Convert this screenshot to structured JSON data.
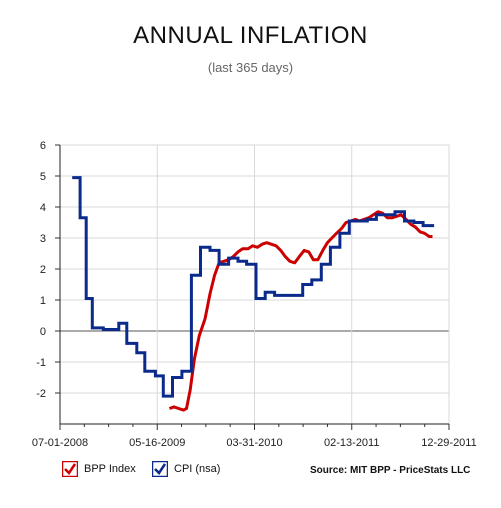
{
  "chart_data": {
    "type": "line",
    "title": "ANNUAL INFLATION",
    "subtitle": "(last 365 days)",
    "xlabel": "",
    "ylabel": "",
    "ylim": [
      -3,
      6
    ],
    "xlim": [
      "2008-07-01",
      "2011-12-29"
    ],
    "yticks": [
      "-2",
      "-1",
      "0",
      "1",
      "2",
      "3",
      "4",
      "5",
      "6"
    ],
    "xticks": [
      "07-01-2008",
      "05-16-2009",
      "03-31-2010",
      "02-13-2011",
      "12-29-2011"
    ],
    "grid": true,
    "legend": "bottom-left",
    "source": "Source: MIT BPP - PriceStats LLC",
    "series": [
      {
        "name": "BPP Index",
        "color": "#cc0000",
        "points": [
          [
            "2009-06-25",
            -2.5
          ],
          [
            "2009-07-10",
            -2.45
          ],
          [
            "2009-07-25",
            -2.5
          ],
          [
            "2009-08-10",
            -2.55
          ],
          [
            "2009-08-20",
            -2.5
          ],
          [
            "2009-09-01",
            -1.9
          ],
          [
            "2009-09-15",
            -0.9
          ],
          [
            "2009-10-01",
            -0.15
          ],
          [
            "2009-10-20",
            0.4
          ],
          [
            "2009-11-05",
            1.2
          ],
          [
            "2009-11-20",
            1.8
          ],
          [
            "2009-12-05",
            2.2
          ],
          [
            "2009-12-20",
            2.25
          ],
          [
            "2010-01-05",
            2.3
          ],
          [
            "2010-01-20",
            2.4
          ],
          [
            "2010-02-05",
            2.55
          ],
          [
            "2010-02-20",
            2.65
          ],
          [
            "2010-03-10",
            2.65
          ],
          [
            "2010-03-25",
            2.75
          ],
          [
            "2010-04-10",
            2.7
          ],
          [
            "2010-04-25",
            2.8
          ],
          [
            "2010-05-10",
            2.85
          ],
          [
            "2010-05-25",
            2.8
          ],
          [
            "2010-06-10",
            2.75
          ],
          [
            "2010-06-25",
            2.6
          ],
          [
            "2010-07-10",
            2.4
          ],
          [
            "2010-07-25",
            2.25
          ],
          [
            "2010-08-10",
            2.2
          ],
          [
            "2010-08-25",
            2.4
          ],
          [
            "2010-09-10",
            2.6
          ],
          [
            "2010-09-25",
            2.55
          ],
          [
            "2010-10-10",
            2.3
          ],
          [
            "2010-10-25",
            2.3
          ],
          [
            "2010-11-10",
            2.6
          ],
          [
            "2010-11-25",
            2.85
          ],
          [
            "2010-12-10",
            3.0
          ],
          [
            "2010-12-25",
            3.15
          ],
          [
            "2011-01-10",
            3.3
          ],
          [
            "2011-01-25",
            3.5
          ],
          [
            "2011-02-10",
            3.55
          ],
          [
            "2011-02-25",
            3.6
          ],
          [
            "2011-03-10",
            3.55
          ],
          [
            "2011-03-25",
            3.6
          ],
          [
            "2011-04-10",
            3.65
          ],
          [
            "2011-04-25",
            3.75
          ],
          [
            "2011-05-10",
            3.85
          ],
          [
            "2011-05-25",
            3.8
          ],
          [
            "2011-06-10",
            3.65
          ],
          [
            "2011-06-25",
            3.65
          ],
          [
            "2011-07-10",
            3.7
          ],
          [
            "2011-07-25",
            3.75
          ],
          [
            "2011-08-10",
            3.6
          ],
          [
            "2011-08-25",
            3.45
          ],
          [
            "2011-09-10",
            3.35
          ],
          [
            "2011-09-25",
            3.2
          ],
          [
            "2011-10-10",
            3.15
          ],
          [
            "2011-10-25",
            3.05
          ],
          [
            "2011-11-05",
            3.05
          ]
        ]
      },
      {
        "name": "CPI (nsa)",
        "color": "#0a2a8c",
        "steps": [
          [
            "2008-08-10",
            4.95
          ],
          [
            "2008-09-05",
            3.65
          ],
          [
            "2008-09-25",
            1.05
          ],
          [
            "2008-10-15",
            0.1
          ],
          [
            "2008-11-20",
            0.05
          ],
          [
            "2009-01-10",
            0.25
          ],
          [
            "2009-02-05",
            -0.4
          ],
          [
            "2009-03-10",
            -0.7
          ],
          [
            "2009-04-05",
            -1.3
          ],
          [
            "2009-05-10",
            -1.45
          ],
          [
            "2009-06-05",
            -2.1
          ],
          [
            "2009-07-05",
            -1.5
          ],
          [
            "2009-08-05",
            -1.3
          ],
          [
            "2009-09-05",
            1.8
          ],
          [
            "2009-10-05",
            2.7
          ],
          [
            "2009-11-05",
            2.6
          ],
          [
            "2009-12-05",
            2.15
          ],
          [
            "2010-01-05",
            2.35
          ],
          [
            "2010-02-05",
            2.25
          ],
          [
            "2010-03-05",
            2.15
          ],
          [
            "2010-04-05",
            1.05
          ],
          [
            "2010-05-05",
            1.25
          ],
          [
            "2010-06-05",
            1.15
          ],
          [
            "2010-08-10",
            1.15
          ],
          [
            "2010-09-05",
            1.5
          ],
          [
            "2010-10-05",
            1.65
          ],
          [
            "2010-11-05",
            2.15
          ],
          [
            "2010-12-05",
            2.7
          ],
          [
            "2011-01-05",
            3.15
          ],
          [
            "2011-02-05",
            3.55
          ],
          [
            "2011-03-05",
            3.55
          ],
          [
            "2011-04-05",
            3.6
          ],
          [
            "2011-05-05",
            3.75
          ],
          [
            "2011-06-05",
            3.75
          ],
          [
            "2011-07-05",
            3.85
          ],
          [
            "2011-08-05",
            3.55
          ],
          [
            "2011-09-05",
            3.5
          ],
          [
            "2011-10-05",
            3.4
          ],
          [
            "2011-11-10",
            3.4
          ]
        ]
      }
    ]
  }
}
